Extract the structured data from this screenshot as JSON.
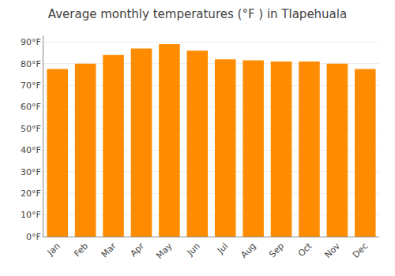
{
  "chart_data": {
    "type": "bar",
    "title": "Average monthly temperatures (°F ) in Tlapehuala",
    "categories": [
      "Jan",
      "Feb",
      "Mar",
      "Apr",
      "May",
      "Jun",
      "Jul",
      "Aug",
      "Sep",
      "Oct",
      "Nov",
      "Dec"
    ],
    "values": [
      77.5,
      80.0,
      84.0,
      87.0,
      89.0,
      86.0,
      82.0,
      81.5,
      81.0,
      81.0,
      80.0,
      77.5
    ],
    "color": "#FF8C00",
    "ylim": [
      0,
      93
    ],
    "yticks": [
      {
        "value": 0,
        "label": "0°F"
      },
      {
        "value": 10,
        "label": "10°F"
      },
      {
        "value": 20,
        "label": "20°F"
      },
      {
        "value": 30,
        "label": "30°F"
      },
      {
        "value": 40,
        "label": "40°F"
      },
      {
        "value": 50,
        "label": "50°F"
      },
      {
        "value": 60,
        "label": "60°F"
      },
      {
        "value": 70,
        "label": "70°F"
      },
      {
        "value": 80,
        "label": "80°F"
      },
      {
        "value": 90,
        "label": "90°F"
      }
    ],
    "grid": true
  }
}
